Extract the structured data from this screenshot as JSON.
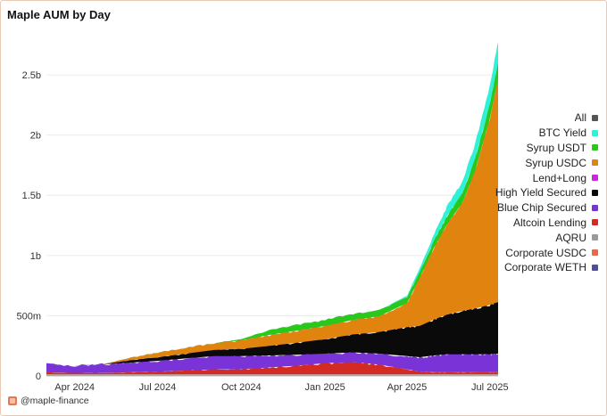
{
  "header": {
    "title": "Maple AUM by Day"
  },
  "footer": {
    "handle": "@maple-finance",
    "logo_icon": "maple-logo-icon"
  },
  "chart_data": {
    "type": "area",
    "stacked": true,
    "title": "Maple AUM by Day",
    "xlabel": "",
    "ylabel": "",
    "ylim": [
      0,
      2900000000
    ],
    "x_ticks": [
      "Apr 2024",
      "Jul 2024",
      "Oct 2024",
      "Jan 2025",
      "Apr 2025",
      "Jul 2025"
    ],
    "x_tick_dates": [
      "2024-04-01",
      "2024-07-01",
      "2024-10-01",
      "2025-01-01",
      "2025-04-01",
      "2025-07-01"
    ],
    "x_range": [
      "2024-03-01",
      "2025-07-10"
    ],
    "y_ticks": [
      {
        "value": 0,
        "label": "0"
      },
      {
        "value": 500000000,
        "label": "500m"
      },
      {
        "value": 1000000000,
        "label": "1b"
      },
      {
        "value": 1500000000,
        "label": "1.5b"
      },
      {
        "value": 2000000000,
        "label": "2b"
      },
      {
        "value": 2500000000,
        "label": "2.5b"
      }
    ],
    "grid": true,
    "legend_position": "right",
    "dates": [
      "2024-03-01",
      "2024-04-01",
      "2024-05-01",
      "2024-06-01",
      "2024-07-01",
      "2024-08-01",
      "2024-09-01",
      "2024-10-01",
      "2024-11-01",
      "2024-12-01",
      "2025-01-01",
      "2025-02-01",
      "2025-03-01",
      "2025-04-01",
      "2025-04-15",
      "2025-05-01",
      "2025-05-15",
      "2025-06-01",
      "2025-06-15",
      "2025-07-01",
      "2025-07-10"
    ],
    "series": [
      {
        "name": "Corporate WETH",
        "color": "#4a4fa3",
        "values": [
          5,
          5,
          5,
          5,
          5,
          5,
          5,
          5,
          5,
          5,
          5,
          5,
          5,
          5,
          5,
          5,
          5,
          5,
          5,
          5,
          5
        ]
      },
      {
        "name": "Corporate USDC",
        "color": "#e8694a",
        "values": [
          5,
          5,
          5,
          5,
          5,
          5,
          5,
          5,
          5,
          5,
          5,
          5,
          5,
          5,
          5,
          5,
          5,
          5,
          5,
          5,
          5
        ]
      },
      {
        "name": "AQRU",
        "color": "#9a9a9a",
        "values": [
          5,
          5,
          5,
          5,
          5,
          5,
          5,
          5,
          5,
          5,
          5,
          5,
          5,
          5,
          5,
          5,
          5,
          5,
          5,
          5,
          5
        ]
      },
      {
        "name": "Altcoin Lending",
        "color": "#d42a24",
        "values": [
          15,
          10,
          10,
          15,
          20,
          30,
          40,
          40,
          55,
          70,
          90,
          100,
          80,
          40,
          20,
          15,
          15,
          15,
          15,
          15,
          15
        ]
      },
      {
        "name": "Blue Chip Secured",
        "color": "#7a33d6",
        "values": [
          70,
          60,
          70,
          80,
          90,
          100,
          110,
          110,
          100,
          90,
          80,
          80,
          90,
          110,
          120,
          140,
          150,
          150,
          150,
          150,
          155
        ]
      },
      {
        "name": "High Yield Secured",
        "color": "#0a0a0a",
        "values": [
          0,
          0,
          0,
          20,
          30,
          40,
          50,
          60,
          80,
          100,
          120,
          150,
          180,
          240,
          260,
          300,
          330,
          360,
          380,
          410,
          430
        ]
      },
      {
        "name": "Lend+Long",
        "color": "#c42ad8",
        "values": [
          0,
          0,
          0,
          0,
          0,
          0,
          0,
          0,
          0,
          0,
          0,
          0,
          0,
          0,
          0,
          0,
          0,
          0,
          0,
          0,
          0
        ]
      },
      {
        "name": "Syrup USDC",
        "color": "#e0840f",
        "values": [
          0,
          0,
          0,
          20,
          40,
          50,
          55,
          70,
          90,
          100,
          110,
          120,
          130,
          200,
          400,
          600,
          750,
          900,
          1150,
          1550,
          1850
        ]
      },
      {
        "name": "Syrup USDT",
        "color": "#2ac81a",
        "values": [
          0,
          0,
          0,
          0,
          0,
          0,
          0,
          10,
          40,
          50,
          50,
          50,
          50,
          50,
          50,
          60,
          70,
          80,
          100,
          120,
          140
        ]
      },
      {
        "name": "BTC Yield",
        "color": "#2ff0d8",
        "values": [
          0,
          0,
          0,
          0,
          0,
          0,
          0,
          0,
          0,
          0,
          0,
          0,
          0,
          10,
          30,
          50,
          80,
          100,
          120,
          150,
          170
        ]
      },
      {
        "name": "All",
        "color": "#555555",
        "values": [
          0,
          0,
          0,
          0,
          0,
          0,
          0,
          0,
          0,
          0,
          0,
          0,
          0,
          0,
          0,
          0,
          0,
          0,
          0,
          0,
          0
        ]
      }
    ],
    "values_unit": "millions USD",
    "legend_order": [
      "All",
      "BTC Yield",
      "Syrup USDT",
      "Syrup USDC",
      "Lend+Long",
      "High Yield Secured",
      "Blue Chip Secured",
      "Altcoin Lending",
      "AQRU",
      "Corporate USDC",
      "Corporate WETH"
    ]
  }
}
